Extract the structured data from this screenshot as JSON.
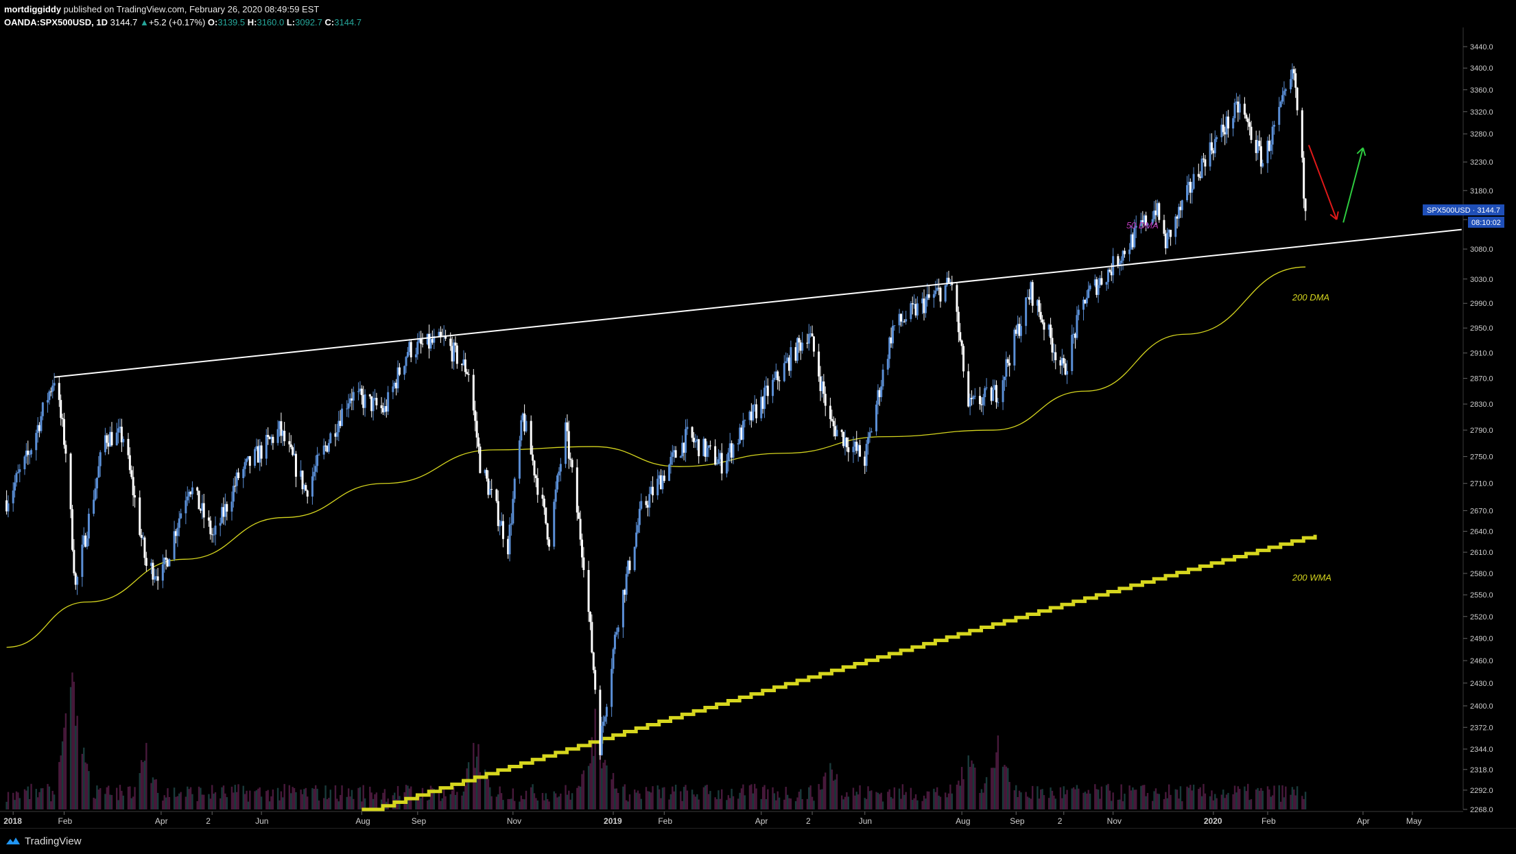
{
  "header": {
    "author": "mortdiggiddy",
    "published": " published on TradingView.com, February 26, 2020 08:49:59 EST",
    "symbol": "OANDA:SPX500USD, 1D",
    "last": "3144.7",
    "change_arrow": "▲",
    "change": "+5.2 (+0.17%)",
    "o_label": "O:",
    "o": "3139.5",
    "h_label": "H:",
    "h": "3160.0",
    "l_label": "L:",
    "l": "3092.7",
    "c_label": "C:",
    "c": "3144.7"
  },
  "price_tag": {
    "label": "SPX500USD · 3144.7",
    "countdown": "08:10:02"
  },
  "footer": {
    "brand": "TradingView",
    "logo_icon": "tradingview-logo-icon"
  },
  "colors": {
    "background": "#000000",
    "candle_up": "#5b8fd6",
    "candle_down": "#ffffff",
    "dma50": "#b83ab8",
    "dma200": "#d6d61e",
    "wma200": "#d6d61e",
    "trendline": "#ffffff",
    "arrow_down": "#e01919",
    "arrow_up": "#2ecc40",
    "price_tag": "#1f4fb8"
  },
  "chart_data": {
    "type": "candlestick",
    "symbol": "OANDA:SPX500USD",
    "interval": "1D",
    "y_axis": {
      "ticks": [
        "2268.0",
        "2292.0",
        "2318.0",
        "2344.0",
        "2372.0",
        "2400.0",
        "2430.0",
        "2460.0",
        "2490.0",
        "2520.0",
        "2550.0",
        "2580.0",
        "2610.0",
        "2640.0",
        "2670.0",
        "2710.0",
        "2750.0",
        "2790.0",
        "2830.0",
        "2870.0",
        "2910.0",
        "2950.0",
        "2990.0",
        "3030.0",
        "3080.0",
        "3130.0",
        "3180.0",
        "3230.0",
        "3280.0",
        "3320.0",
        "3360.0",
        "3400.0",
        "3440.0"
      ],
      "scale": "log"
    },
    "x_axis": {
      "ticks": [
        "2018",
        "Feb",
        "Apr",
        "2",
        "Jun",
        "Aug",
        "Sep",
        "Nov",
        "2019",
        "Feb",
        "Apr",
        "2",
        "Jun",
        "Aug",
        "Sep",
        "2",
        "Nov",
        "2020",
        "Feb",
        "Apr",
        "May"
      ]
    },
    "price_path": [
      [
        "2017-12-28",
        2685
      ],
      [
        "2018-01-10",
        2750
      ],
      [
        "2018-01-26",
        2872
      ],
      [
        "2018-02-02",
        2760
      ],
      [
        "2018-02-08",
        2560
      ],
      [
        "2018-02-26",
        2780
      ],
      [
        "2018-03-09",
        2780
      ],
      [
        "2018-03-23",
        2590
      ],
      [
        "2018-04-02",
        2580
      ],
      [
        "2018-04-18",
        2710
      ],
      [
        "2018-05-03",
        2630
      ],
      [
        "2018-05-18",
        2720
      ],
      [
        "2018-06-12",
        2790
      ],
      [
        "2018-06-28",
        2700
      ],
      [
        "2018-07-25",
        2845
      ],
      [
        "2018-08-15",
        2820
      ],
      [
        "2018-08-29",
        2915
      ],
      [
        "2018-09-20",
        2930
      ],
      [
        "2018-10-05",
        2880
      ],
      [
        "2018-10-12",
        2740
      ],
      [
        "2018-10-29",
        2620
      ],
      [
        "2018-11-07",
        2810
      ],
      [
        "2018-11-23",
        2630
      ],
      [
        "2018-12-03",
        2790
      ],
      [
        "2018-12-14",
        2600
      ],
      [
        "2018-12-24",
        2350
      ],
      [
        "2019-01-04",
        2520
      ],
      [
        "2019-01-18",
        2670
      ],
      [
        "2019-02-15",
        2780
      ],
      [
        "2019-03-08",
        2740
      ],
      [
        "2019-04-30",
        2945
      ],
      [
        "2019-05-13",
        2800
      ],
      [
        "2019-06-03",
        2745
      ],
      [
        "2019-06-20",
        2950
      ],
      [
        "2019-07-26",
        3025
      ],
      [
        "2019-08-05",
        2825
      ],
      [
        "2019-08-23",
        2850
      ],
      [
        "2019-09-12",
        3010
      ],
      [
        "2019-10-02",
        2880
      ],
      [
        "2019-10-15",
        3000
      ],
      [
        "2019-10-30",
        3045
      ],
      [
        "2019-11-27",
        3150
      ],
      [
        "2019-12-03",
        3090
      ],
      [
        "2019-12-27",
        3240
      ],
      [
        "2020-01-17",
        3330
      ],
      [
        "2020-01-31",
        3230
      ],
      [
        "2020-02-19",
        3390
      ],
      [
        "2020-02-24",
        3220
      ],
      [
        "2020-02-26",
        3144.7
      ]
    ],
    "volume_spikes": [
      [
        "2018-02-06",
        1.0
      ],
      [
        "2018-02-09",
        0.7
      ],
      [
        "2018-03-23",
        0.45
      ],
      [
        "2018-10-10",
        0.55
      ],
      [
        "2018-12-21",
        0.75
      ],
      [
        "2018-12-26",
        0.55
      ],
      [
        "2019-05-13",
        0.4
      ],
      [
        "2019-08-05",
        0.5
      ],
      [
        "2019-08-23",
        0.55
      ]
    ],
    "trendline": [
      [
        "2018-01-26",
        2872
      ],
      [
        "2020-05-31",
        3113
      ]
    ],
    "dma200": [
      [
        "2017-12-28",
        2478
      ],
      [
        "2018-02-15",
        2540
      ],
      [
        "2018-04-15",
        2600
      ],
      [
        "2018-06-15",
        2660
      ],
      [
        "2018-08-15",
        2710
      ],
      [
        "2018-10-20",
        2760
      ],
      [
        "2018-12-20",
        2765
      ],
      [
        "2019-02-10",
        2735
      ],
      [
        "2019-04-15",
        2755
      ],
      [
        "2019-06-15",
        2780
      ],
      [
        "2019-08-20",
        2790
      ],
      [
        "2019-10-15",
        2850
      ],
      [
        "2019-12-15",
        2940
      ],
      [
        "2020-02-26",
        3050
      ]
    ],
    "wma200": [
      [
        "2018-08-01",
        2268
      ],
      [
        "2020-02-26",
        2635
      ]
    ],
    "annotations": [
      {
        "text": "50 DMA",
        "date": "2019-11-09",
        "price": 3115,
        "color": "#b83ab8"
      },
      {
        "text": "200 DMA",
        "date": "2020-02-18",
        "price": 2995,
        "color": "#d6d61e"
      },
      {
        "text": "200 WMA",
        "date": "2020-02-18",
        "price": 2570,
        "color": "#d6d61e"
      }
    ],
    "arrows": [
      {
        "direction": "down",
        "from": [
          "2020-02-28",
          3260
        ],
        "to": [
          "2020-03-16",
          3130
        ],
        "color": "#e01919"
      },
      {
        "direction": "up",
        "from": [
          "2020-03-20",
          3125
        ],
        "to": [
          "2020-04-01",
          3255
        ],
        "color": "#2ecc40"
      }
    ],
    "last_price": 3144.7
  }
}
